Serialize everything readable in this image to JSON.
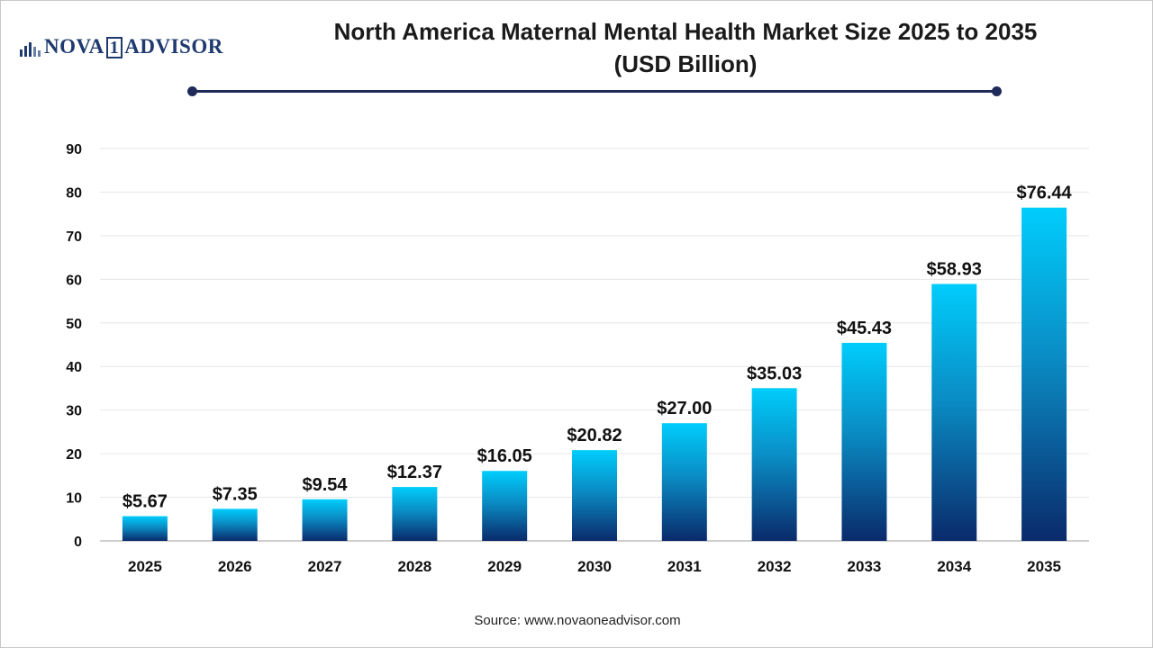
{
  "brand": {
    "name": "NOVA",
    "digit": "1",
    "rest": "ADVISOR",
    "color": "#1f3a6e"
  },
  "header": {
    "title_line1": "North America Maternal Mental Health Market Size 2025 to 2035",
    "title_line2": "(USD Billion)"
  },
  "source": "Source: www.novaoneadvisor.com",
  "colors": {
    "bar_top": "#00cdfc",
    "bar_mid": "#0a8cc4",
    "bar_bottom": "#0a2a6b",
    "grid": "#e6e6e6",
    "axis": "#bfbfbf",
    "title_rule": "#1f2a5a"
  },
  "chart_data": {
    "type": "bar",
    "title": "North America Maternal Mental Health Market Size 2025 to 2035 (USD Billion)",
    "categories": [
      "2025",
      "2026",
      "2027",
      "2028",
      "2029",
      "2030",
      "2031",
      "2032",
      "2033",
      "2034",
      "2035"
    ],
    "values": [
      5.67,
      7.35,
      9.54,
      12.37,
      16.05,
      20.82,
      27.0,
      35.03,
      45.43,
      58.93,
      76.44
    ],
    "data_labels": [
      "$5.67",
      "$7.35",
      "$9.54",
      "$12.37",
      "$16.05",
      "$20.82",
      "$27.00",
      "$35.03",
      "$45.43",
      "$58.93",
      "$76.44"
    ],
    "yticks": [
      0,
      10,
      20,
      30,
      40,
      50,
      60,
      70,
      80,
      90
    ],
    "ylim": [
      0,
      90
    ],
    "xlabel": "",
    "ylabel": "",
    "grid": true,
    "legend": "none"
  }
}
